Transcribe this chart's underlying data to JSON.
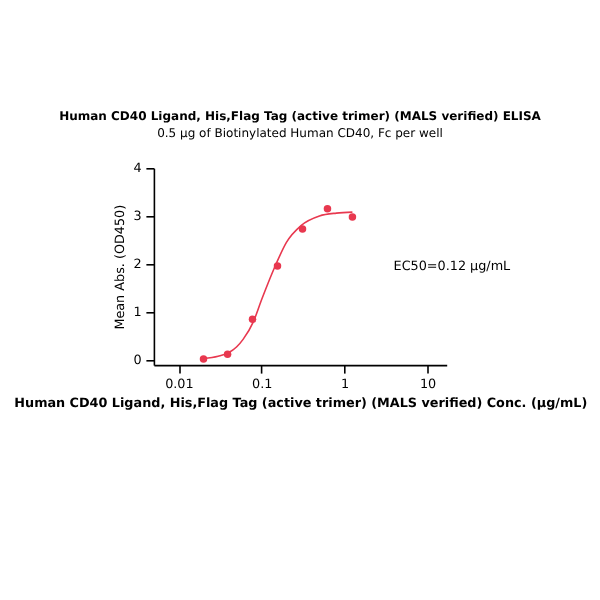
{
  "chart_data": {
    "type": "scatter",
    "title": "Human CD40 Ligand, His,Flag Tag (active trimer) (MALS verified) ELISA",
    "subtitle": "0.5 µg of Biotinylated Human CD40, Fc per well",
    "xlabel": "Human CD40 Ligand, His,Flag Tag (active trimer) (MALS verified) Conc. (µg/mL)",
    "ylabel": "Mean Abs. (OD450)",
    "annotations": [
      "EC50=0.12 µg/mL"
    ],
    "log": "x",
    "grid": false,
    "marker": "circle",
    "xlim": [
      0.005,
      17
    ],
    "ylim": [
      -0.1,
      4
    ],
    "xticks": [
      0.01,
      0.1,
      1,
      10
    ],
    "yticks": [
      0,
      1,
      2,
      3,
      4
    ],
    "series": [
      {
        "color": "#e8384f",
        "x": [
          0.02,
          0.039,
          0.078,
          0.156,
          0.3125,
          0.625,
          1.25
        ],
        "values": [
          0.02,
          0.12,
          0.85,
          1.96,
          2.73,
          3.15,
          2.98
        ]
      },
      {
        "type": "line",
        "color": "#e8384f",
        "marker": "none",
        "line_style": "solid",
        "x": [
          0.02,
          0.03,
          0.04,
          0.05,
          0.06,
          0.08,
          0.1,
          0.12,
          0.15,
          0.2,
          0.3,
          0.5,
          0.8,
          1.25
        ],
        "values": [
          0.03,
          0.08,
          0.15,
          0.27,
          0.43,
          0.8,
          1.25,
          1.6,
          2.0,
          2.45,
          2.8,
          3.0,
          3.06,
          3.08
        ]
      }
    ]
  }
}
